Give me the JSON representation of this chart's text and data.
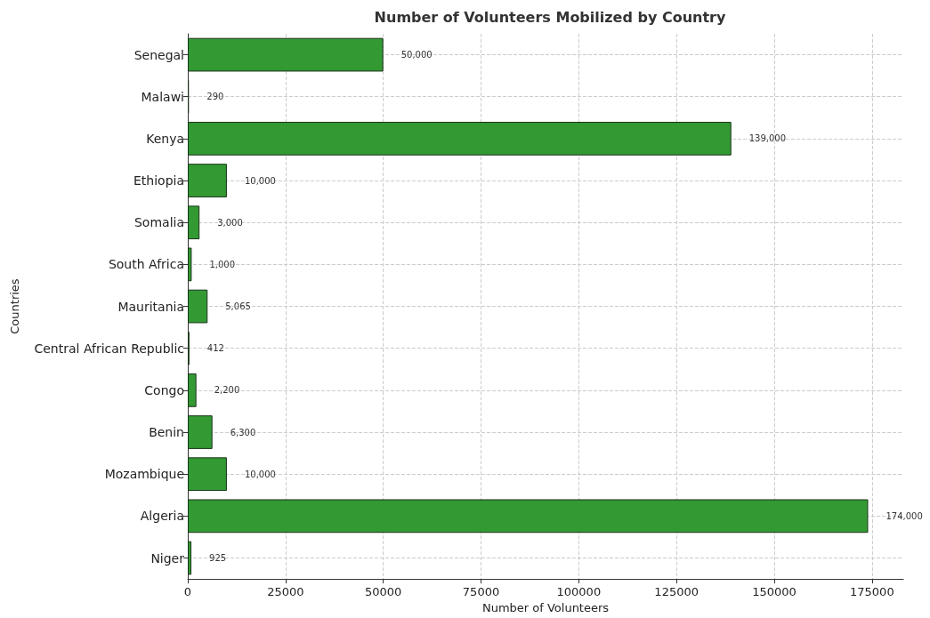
{
  "chart_data": {
    "type": "bar",
    "orientation": "horizontal",
    "title": "Number of Volunteers Mobilized by Country",
    "xlabel": "Number of Volunteers",
    "ylabel": "Countries",
    "categories": [
      "Senegal",
      "Malawi",
      "Kenya",
      "Ethiopia",
      "Somalia",
      "South Africa",
      "Mauritania",
      "Central African Republic",
      "Congo",
      "Benin",
      "Mozambique",
      "Algeria",
      "Niger"
    ],
    "values": [
      50000,
      290,
      139000,
      10000,
      3000,
      1000,
      5065,
      412,
      2200,
      6300,
      10000,
      174000,
      925
    ],
    "value_labels": [
      "50,000",
      "290",
      "139,000",
      "10,000",
      "3,000",
      "1,000",
      "5,065",
      "412",
      "2,200",
      "6,300",
      "10,000",
      "174,000",
      "925"
    ],
    "color": "#339933",
    "xlim": [
      0,
      183000
    ],
    "xticks": [
      0,
      25000,
      50000,
      75000,
      100000,
      125000,
      150000,
      175000
    ],
    "grid": true
  }
}
